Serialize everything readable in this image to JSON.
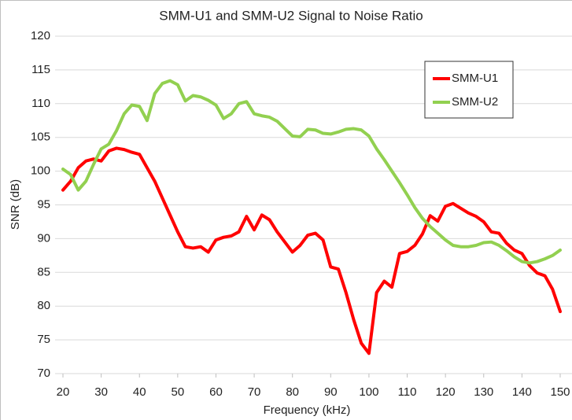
{
  "chart_data": {
    "type": "line",
    "title": "SMM-U1 and SMM-U2 Signal to Noise Ratio",
    "x_label": "Frequency (kHz)",
    "y_label": "SNR (dB)",
    "x": [
      20,
      22,
      24,
      26,
      28,
      30,
      32,
      34,
      36,
      38,
      40,
      42,
      44,
      46,
      48,
      50,
      52,
      54,
      56,
      58,
      60,
      62,
      64,
      66,
      68,
      70,
      72,
      74,
      76,
      78,
      80,
      82,
      84,
      86,
      88,
      90,
      92,
      94,
      96,
      98,
      100,
      102,
      104,
      106,
      108,
      110,
      112,
      114,
      116,
      118,
      120,
      122,
      124,
      126,
      128,
      130,
      132,
      134,
      136,
      138,
      140,
      142,
      144,
      146,
      148,
      150
    ],
    "series": [
      {
        "name": "SMM-U1",
        "color": "#ff0000",
        "values": [
          97.2,
          98.5,
          100.5,
          101.5,
          101.8,
          101.5,
          103,
          103.4,
          103.2,
          102.8,
          102.5,
          100.5,
          98.5,
          96,
          93.5,
          91,
          88.8,
          88.6,
          88.8,
          88,
          89.8,
          90.2,
          90.4,
          91,
          93.3,
          91.3,
          93.5,
          92.8,
          91,
          89.5,
          88,
          89,
          90.5,
          90.8,
          89.8,
          85.8,
          85.5,
          82,
          78,
          74.5,
          73,
          82,
          83.7,
          82.8,
          87.8,
          88.1,
          89,
          90.7,
          93.4,
          92.6,
          94.8,
          95.2,
          94.5,
          93.8,
          93.3,
          92.5,
          91,
          90.8,
          89.3,
          88.3,
          87.8,
          86,
          84.9,
          84.5,
          82.5,
          79.2
        ]
      },
      {
        "name": "SMM-U2",
        "color": "#92d050",
        "values": [
          100.3,
          99.5,
          97.2,
          98.5,
          101,
          103.3,
          104,
          106,
          108.5,
          109.8,
          109.6,
          107.5,
          111.5,
          113,
          113.4,
          112.8,
          110.4,
          111.2,
          111,
          110.5,
          109.8,
          107.8,
          108.5,
          110,
          110.3,
          108.5,
          108.2,
          108,
          107.4,
          106.3,
          105.2,
          105.1,
          106.2,
          106.1,
          105.6,
          105.5,
          105.8,
          106.2,
          106.3,
          106.1,
          105.2,
          103.3,
          101.7,
          100,
          98.3,
          96.5,
          94.6,
          93,
          91.8,
          90.8,
          89.8,
          89,
          88.8,
          88.8,
          89,
          89.4,
          89.5,
          89,
          88.2,
          87.3,
          86.6,
          86.4,
          86.6,
          87,
          87.5,
          88.3
        ]
      }
    ],
    "xlim": [
      20,
      150
    ],
    "xticks": [
      20,
      30,
      40,
      50,
      60,
      70,
      80,
      90,
      100,
      110,
      120,
      130,
      140,
      150
    ],
    "ylim": [
      70,
      120
    ],
    "yticks": [
      70,
      75,
      80,
      85,
      90,
      95,
      100,
      105,
      110,
      115,
      120
    ],
    "grid": true,
    "legend": "upper right"
  }
}
